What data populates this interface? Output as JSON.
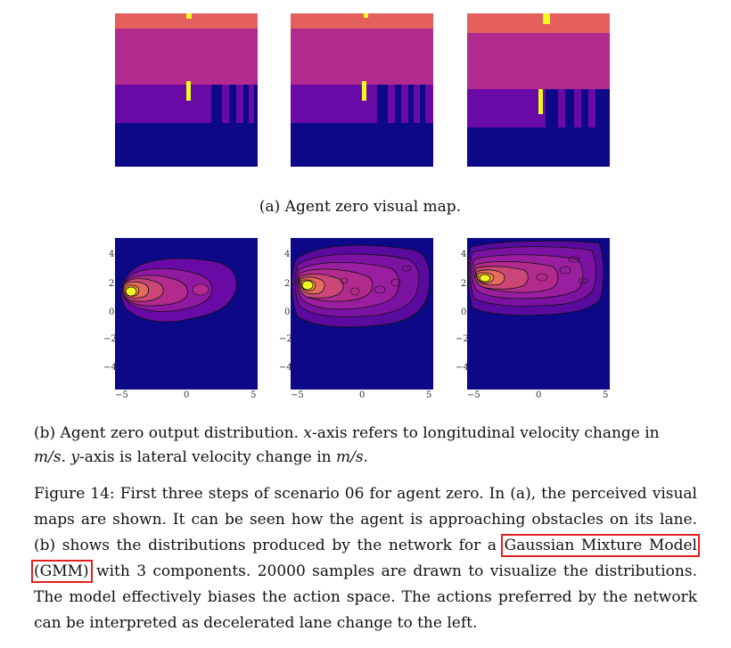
{
  "colors": {
    "red": "#e5605c",
    "magenta": "#b22a8e",
    "purple": "#6a0aa6",
    "navy": "#0d0887",
    "yellow": "#f0f921"
  },
  "figure_a": {
    "caption": "(a) Agent zero visual map."
  },
  "figure_b": {
    "caption_parts": [
      "(b) Agent zero output distribution. ",
      "x",
      "-axis refers to longitudinal velocity change in ",
      "m/s",
      ". ",
      "y",
      "-axis is lateral velocity change in ",
      "m/s",
      "."
    ],
    "plots": [
      {
        "xticks": [
          "−5",
          "0",
          "5"
        ],
        "yticks": [
          "4",
          "2",
          "0",
          "−2",
          "−4"
        ]
      },
      {
        "xticks": [
          "−5",
          "0",
          "5"
        ],
        "yticks": [
          "4",
          "2",
          "0",
          "−2",
          "−4"
        ]
      },
      {
        "xticks": [
          "−5",
          "0",
          "5"
        ],
        "yticks": [
          "4",
          "2",
          "0",
          "−2",
          "−4"
        ]
      }
    ]
  },
  "figure_caption": {
    "part1": "Figure 14: First three steps of scenario 06 for agent zero. In (a), the perceived visual maps are shown. It can be seen how the agent is approaching obstacles on its lane. (b) shows the distributions produced by the network for a ",
    "highlight": "Gaussian Mixture Model (GMM)",
    "part2": " with 3 components. 20000 samples are drawn to visualize the distributions. The model effectively biases the action space. The actions preferred by the network can be interpreted as decelerated lane change to the left."
  }
}
